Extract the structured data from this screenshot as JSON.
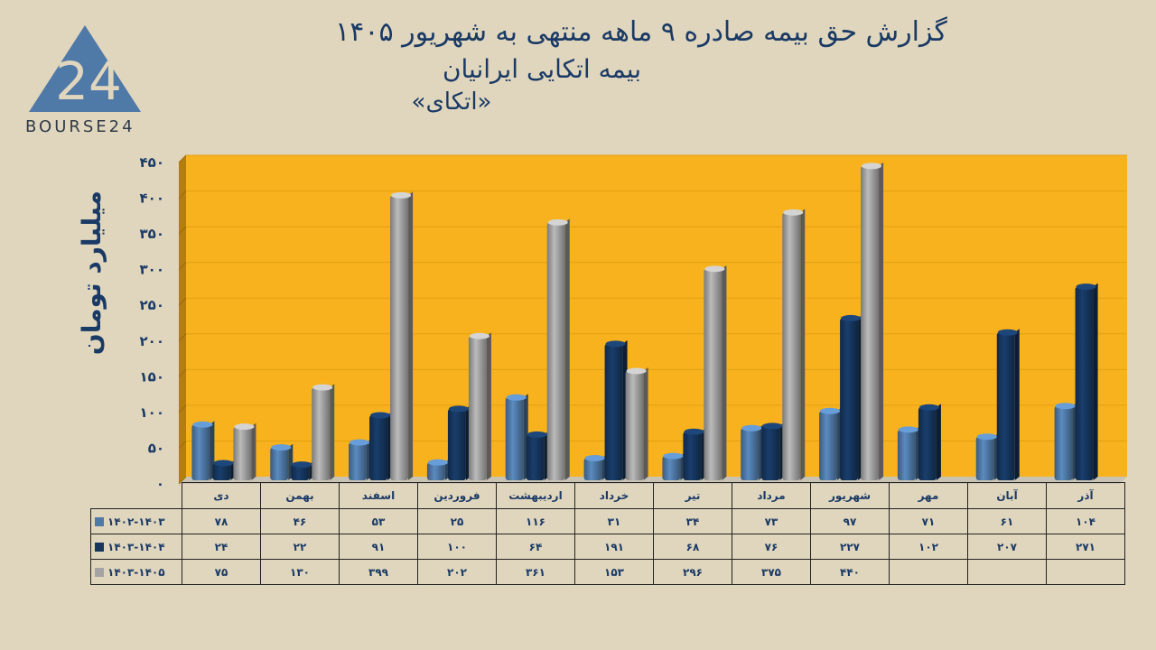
{
  "header": {
    "title_line1": "گزارش  حق بیمه صادره ۹ ماهه منتهی به شهریور ۱۴۰۵",
    "title_line2": "بیمه اتکایی ایرانیان",
    "title_line3": "«اتکای»"
  },
  "logo": {
    "number": "24",
    "text": "BOURSE24",
    "color": "#4f79a7"
  },
  "chart_data": {
    "type": "bar",
    "ylabel": "میلیارد تومان",
    "ylim": [
      0,
      450
    ],
    "yticks": [
      "۰",
      "۵۰",
      "۱۰۰",
      "۱۵۰",
      "۲۰۰",
      "۲۵۰",
      "۳۰۰",
      "۳۵۰",
      "۴۰۰",
      "۴۵۰"
    ],
    "background": "#f7b21e",
    "categories": [
      "دی",
      "بهمن",
      "اسفند",
      "فروردین",
      "اردیبهشت",
      "خرداد",
      "تیر",
      "مرداد",
      "شهریور",
      "مهر",
      "آبان",
      "آذر"
    ],
    "series": [
      {
        "name": "۱۴۰۲-۱۴۰۳",
        "color": "#4f79a7",
        "values": [
          78,
          46,
          53,
          25,
          116,
          31,
          34,
          73,
          97,
          71,
          61,
          104
        ],
        "labels": [
          "۷۸",
          "۴۶",
          "۵۳",
          "۲۵",
          "۱۱۶",
          "۳۱",
          "۳۴",
          "۷۳",
          "۹۷",
          "۷۱",
          "۶۱",
          "۱۰۴"
        ]
      },
      {
        "name": "۱۴۰۳-۱۴۰۴",
        "color": "#16365e",
        "values": [
          24,
          22,
          91,
          100,
          64,
          191,
          68,
          76,
          227,
          102,
          207,
          271
        ],
        "labels": [
          "۲۴",
          "۲۲",
          "۹۱",
          "۱۰۰",
          "۶۴",
          "۱۹۱",
          "۶۸",
          "۷۶",
          "۲۲۷",
          "۱۰۲",
          "۲۰۷",
          "۲۷۱"
        ]
      },
      {
        "name": "۱۴۰۳-۱۴۰۵",
        "color": "#a3a3a3",
        "values": [
          75,
          130,
          399,
          202,
          361,
          153,
          296,
          375,
          440,
          null,
          null,
          null
        ],
        "labels": [
          "۷۵",
          "۱۳۰",
          "۳۹۹",
          "۲۰۲",
          "۳۶۱",
          "۱۵۳",
          "۲۹۶",
          "۳۷۵",
          "۴۴۰",
          "",
          "",
          ""
        ]
      }
    ]
  }
}
